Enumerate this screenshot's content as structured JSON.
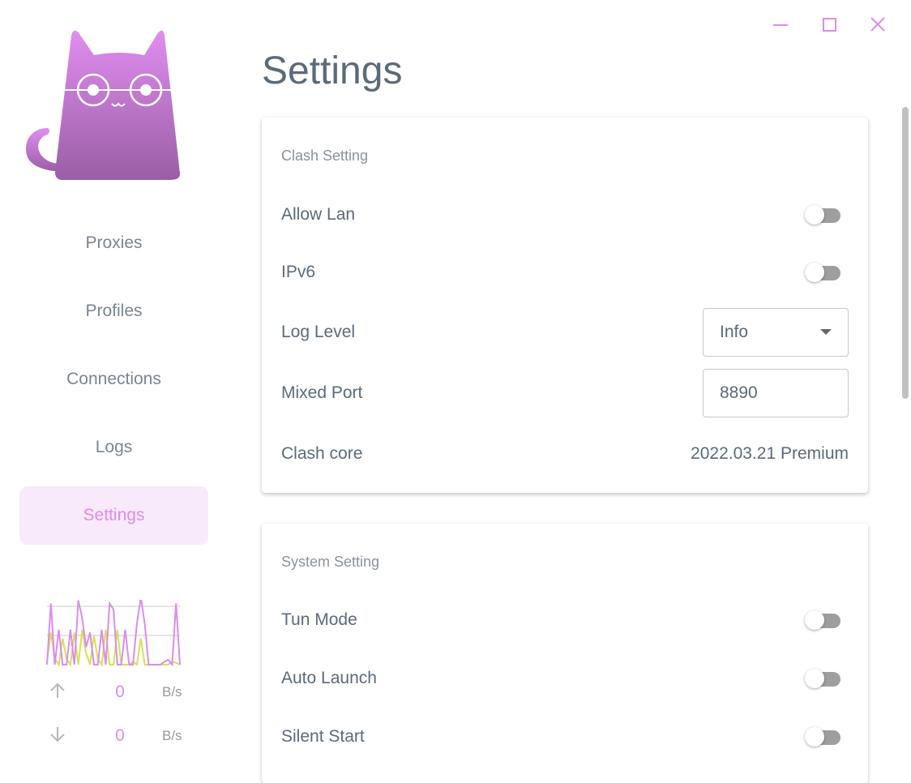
{
  "window": {
    "minimize_icon": "minimize-icon",
    "maximize_icon": "maximize-icon",
    "close_icon": "close-icon"
  },
  "sidebar": {
    "logo": "cat-with-glasses-logo",
    "items": [
      {
        "label": "Proxies"
      },
      {
        "label": "Profiles"
      },
      {
        "label": "Connections"
      },
      {
        "label": "Logs"
      },
      {
        "label": "Settings",
        "active": true
      }
    ],
    "traffic": {
      "upload": {
        "icon": "arrow-up-icon",
        "value": "0",
        "unit": "B/s"
      },
      "download": {
        "icon": "arrow-down-icon",
        "value": "0",
        "unit": "B/s"
      },
      "graph": {
        "upload_series": [
          0.05,
          0.55,
          0.1,
          0,
          0.45,
          0.1,
          0,
          0.55,
          0,
          0.6,
          0.2,
          0,
          0.5,
          0.1,
          0,
          0.6,
          0,
          0,
          0.6,
          0,
          0,
          0,
          0.05,
          0,
          0.45,
          0,
          0,
          0,
          0,
          0,
          0,
          0,
          0.05,
          0.03,
          0
        ],
        "download_series": [
          0,
          1.05,
          0,
          0.6,
          0,
          0,
          0.6,
          0,
          1.1,
          0.8,
          0.3,
          0.55,
          0,
          0,
          0.6,
          0,
          1.05,
          0.95,
          0,
          0,
          0.6,
          0,
          0,
          0.7,
          1.15,
          0.7,
          0,
          0,
          0,
          0,
          0.05,
          0.08,
          0,
          1.05,
          0
        ]
      }
    }
  },
  "colors": {
    "accent": "#dd8bec",
    "upload_line": "#d4e157",
    "download_line": "#dd8bec",
    "active_bg": "#f8eafa"
  },
  "page_title": "Settings",
  "clash_setting": {
    "title": "Clash Setting",
    "allow_lan": {
      "label": "Allow Lan",
      "on": false
    },
    "ipv6": {
      "label": "IPv6",
      "on": false
    },
    "log_level": {
      "label": "Log Level",
      "value": "Info"
    },
    "mixed_port": {
      "label": "Mixed Port",
      "value": "8890"
    },
    "clash_core": {
      "label": "Clash core",
      "value": "2022.03.21 Premium"
    }
  },
  "system_setting": {
    "title": "System Setting",
    "tun_mode": {
      "label": "Tun Mode",
      "on": false
    },
    "auto_launch": {
      "label": "Auto Launch",
      "on": false
    },
    "silent_start": {
      "label": "Silent Start",
      "on": false
    }
  }
}
